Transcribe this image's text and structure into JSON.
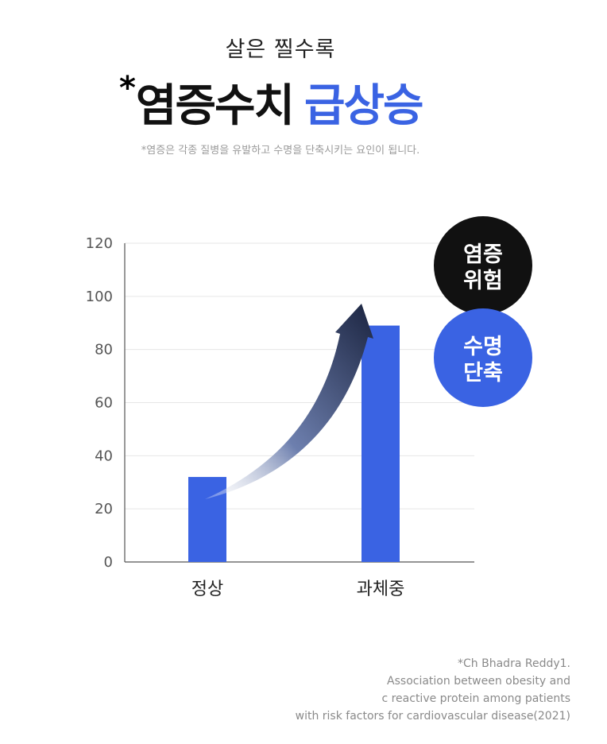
{
  "header": {
    "subtitle": "살은 찔수록",
    "star": "*",
    "headline_dark": "염증수치",
    "headline_accent": "급상승",
    "note": "*염증은 각종 질병을 유발하고 수명을 단축시키는 요인이 됩니다."
  },
  "chart_data": {
    "type": "bar",
    "categories": [
      "정상",
      "과체중"
    ],
    "values": [
      32,
      89
    ],
    "yticks": [
      0,
      20,
      40,
      60,
      80,
      100,
      120
    ],
    "ylim": [
      0,
      120
    ],
    "title": "",
    "xlabel": "",
    "ylabel": "",
    "grid": true,
    "bar_color": "#3a63e3"
  },
  "badges": [
    {
      "line1": "염증",
      "line2": "위험",
      "color": "#111111"
    },
    {
      "line1": "수명",
      "line2": "단축",
      "color": "#3a63e3"
    }
  ],
  "citation": {
    "lines": [
      "*Ch Bhadra Reddy1.",
      "Association between obesity and",
      "c reactive protein among patients",
      "with risk factors for cardiovascular disease(2021)"
    ]
  },
  "colors": {
    "accent": "#3a63e3",
    "arrow": "#1f2a44"
  }
}
